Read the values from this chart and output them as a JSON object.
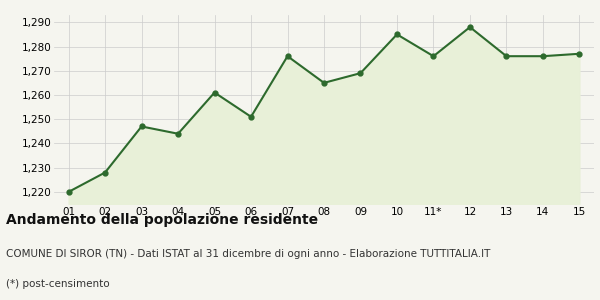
{
  "x_labels": [
    "01",
    "02",
    "03",
    "04",
    "05",
    "06",
    "07",
    "08",
    "09",
    "10",
    "11*",
    "12",
    "13",
    "14",
    "15"
  ],
  "x_values": [
    1,
    2,
    3,
    4,
    5,
    6,
    7,
    8,
    9,
    10,
    11,
    12,
    13,
    14,
    15
  ],
  "y_values": [
    1220,
    1228,
    1247,
    1244,
    1261,
    1251,
    1276,
    1265,
    1269,
    1285,
    1276,
    1288,
    1276,
    1276,
    1277
  ],
  "line_color": "#2d6a2d",
  "fill_color": "#e8f0d8",
  "marker": "o",
  "marker_size": 3.5,
  "line_width": 1.5,
  "ylim_min": 1215,
  "ylim_max": 1293,
  "yticks": [
    1220,
    1230,
    1240,
    1250,
    1260,
    1270,
    1280,
    1290
  ],
  "fill_baseline": 1215,
  "bg_color": "#f5f5ef",
  "grid_color": "#cccccc",
  "title": "Andamento della popolazione residente",
  "subtitle": "COMUNE DI SIROR (TN) - Dati ISTAT al 31 dicembre di ogni anno - Elaborazione TUTTITALIA.IT",
  "footnote": "(*) post-censimento",
  "title_fontsize": 10,
  "subtitle_fontsize": 7.5,
  "footnote_fontsize": 7.5,
  "tick_fontsize": 7.5
}
